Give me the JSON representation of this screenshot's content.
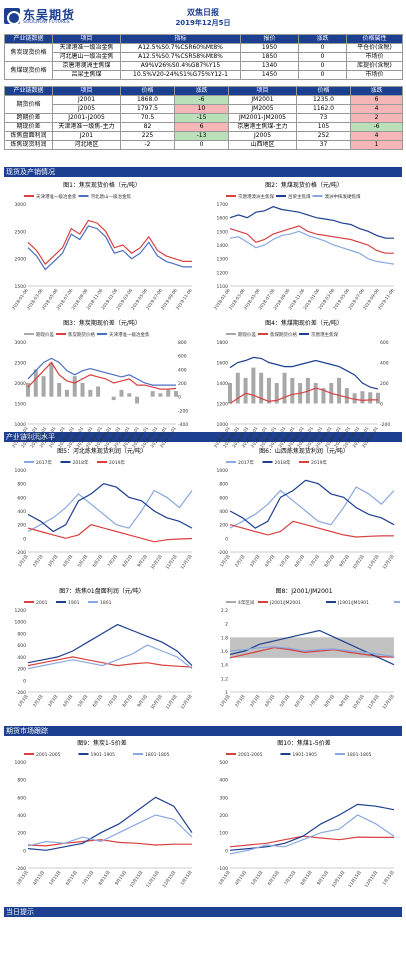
{
  "header": {
    "logo_cn": "东吴期货",
    "logo_en": "SOOCHOW FUTURES",
    "title": "双焦日报",
    "date": "2019年12月5日"
  },
  "spot": {
    "headers": [
      "产业链数据",
      "项目",
      "指标",
      "报价",
      "涨跌",
      "价格属性"
    ],
    "rows": [
      {
        "group": "焦炭现货价格",
        "item": "天津港准一级冶金焦",
        "spec": "A12.5%S0.7%CSR60%Mt8%",
        "price": "1950",
        "chg": "0",
        "attr": "平仓价(含税)"
      },
      {
        "group": "",
        "item": "河北唐山一级冶金焦",
        "spec": "A12.5%S0.7%CSR58%Mt8%",
        "price": "1850",
        "chg": "0",
        "attr": "市场价"
      },
      {
        "group": "焦煤现货价格",
        "item": "京唐港澳洲主焦煤",
        "spec": "A9%V26%S0.4%G87%Y15",
        "price": "1340",
        "chg": "0",
        "attr": "库提价(含税)"
      },
      {
        "group": "",
        "item": "吕梁主焦煤",
        "spec": "10.5%V20-24%S1%G75%Y12-1",
        "price": "1450",
        "chg": "0",
        "attr": "市场价"
      }
    ]
  },
  "futures": {
    "headers": [
      "产业链数据",
      "项目",
      "价格",
      "涨跌",
      "项目",
      "价格",
      "涨跌"
    ],
    "rows": [
      {
        "group": "期货价格",
        "a": "J2001",
        "ap": "1868.0",
        "ac": "-6",
        "b": "JM2001",
        "bp": "1235.0",
        "bc": "6"
      },
      {
        "group": "",
        "a": "J2005",
        "ap": "1797.5",
        "ac": "10",
        "b": "JM2005",
        "bp": "1162.0",
        "bc": "4"
      },
      {
        "group": "跨期价差",
        "a": "J2001-J2005",
        "ap": "70.5",
        "ac": "-15",
        "b": "JM2001-JM2005",
        "bp": "73",
        "bc": "2"
      },
      {
        "group": "期现价差",
        "a": "天津港准一级焦-主力",
        "ap": "82",
        "ac": "6",
        "b": "京唐港主焦煤-主力",
        "bp": "105",
        "bc": "-6"
      },
      {
        "group": "炼焦盘面利润",
        "a": "J201",
        "ap": "225",
        "ac": "-13",
        "b": "J2005",
        "bp": "252",
        "bc": "4"
      },
      {
        "group": "炼焦现货利润",
        "a": "河北地区",
        "ap": "-2",
        "ac": "0",
        "b": "山西地区",
        "bp": "37",
        "bc": "1"
      }
    ]
  },
  "sections": {
    "s1": "现货及产销情况",
    "s2": "产业链利润水平",
    "s3": "期货市场跟踪",
    "s4": "当日提示"
  },
  "captions": {
    "f1": "图1：焦炭现货价格（元/吨）",
    "f2": "图2：焦煤现货价格（元/吨）",
    "f3": "图3：焦炭期现价差（元/吨）",
    "f4": "图4：焦煤期现价差（元/吨）",
    "f5": "图5：河北炼焦现货利润（元/吨）",
    "f6": "图6：山西炼焦现货利润（元/吨）",
    "f7": "图7：炼焦01盘面利润（元/吨）",
    "f8": "图8：J2001/JM2001",
    "f9": "图9：焦炭1-5价差",
    "f10": "图10：焦煤1-5价差"
  },
  "chart_data": [
    {
      "id": "f1",
      "type": "line",
      "ylim": [
        1500,
        3000
      ],
      "yticks": [
        "3000",
        "2500",
        "2000",
        "1500"
      ],
      "xticks": [
        "2018-01-06",
        "2018-03-06",
        "2018-05-06",
        "2018-07-06",
        "2018-09-06",
        "2018-11-06",
        "2019-01-06",
        "2019-03-06",
        "2019-05-06",
        "2019-07-06",
        "2019-09-06",
        "2019-11-06"
      ],
      "series": [
        {
          "name": "天津港准一级冶金焦",
          "color": "#d94040",
          "values": [
            2300,
            2150,
            1900,
            2050,
            2200,
            2550,
            2450,
            2700,
            2650,
            2500,
            2200,
            2250,
            2100,
            2200,
            2400,
            2150,
            2050,
            2000,
            1950,
            1950
          ]
        },
        {
          "name": "河北唐山一级冶金焦",
          "color": "#4a6fc0",
          "values": [
            2200,
            2050,
            1800,
            1950,
            2100,
            2450,
            2350,
            2600,
            2550,
            2400,
            2100,
            2150,
            2000,
            2100,
            2300,
            2050,
            1950,
            1900,
            1850,
            1850
          ]
        }
      ]
    },
    {
      "id": "f2",
      "type": "line",
      "ylim": [
        1100,
        1700
      ],
      "yticks": [
        "1700",
        "1600",
        "1500",
        "1400",
        "1300",
        "1200",
        "1100"
      ],
      "xticks": [
        "2018-01-06",
        "2018-03-06",
        "2018-05-06",
        "2018-07-06",
        "2018-09-06",
        "2018-11-06",
        "2019-01-06",
        "2019-03-06",
        "2019-05-06",
        "2019-07-06",
        "2019-09-06",
        "2019-11-06"
      ],
      "series": [
        {
          "name": "京唐港澳洲主焦煤",
          "color": "#d94040",
          "values": [
            1520,
            1500,
            1480,
            1420,
            1440,
            1480,
            1500,
            1520,
            1540,
            1500,
            1480,
            1470,
            1460,
            1450,
            1440,
            1420,
            1400,
            1360,
            1340,
            1340
          ]
        },
        {
          "name": "吕梁主焦煤",
          "color": "#1c3f8f",
          "values": [
            1600,
            1620,
            1600,
            1640,
            1650,
            1680,
            1660,
            1650,
            1640,
            1620,
            1600,
            1590,
            1580,
            1560,
            1550,
            1520,
            1500,
            1470,
            1450,
            1450
          ]
        },
        {
          "name": "澳洲中挥发硬焦煤",
          "color": "#8aa8e0",
          "values": [
            1450,
            1460,
            1420,
            1380,
            1400,
            1440,
            1470,
            1480,
            1500,
            1470,
            1450,
            1430,
            1400,
            1380,
            1360,
            1340,
            1300,
            1280,
            1270,
            1260
          ]
        }
      ]
    },
    {
      "id": "f3",
      "type": "line",
      "ylim": [
        1000,
        3000
      ],
      "y2lim": [
        -400,
        800
      ],
      "yticks": [
        "3000",
        "2500",
        "2000",
        "1500",
        "1000"
      ],
      "y2ticks": [
        "800",
        "600",
        "400",
        "200",
        "0",
        "-200",
        "-400"
      ],
      "xticks": [
        "2018-07-01",
        "2018-08-01",
        "2018-09-01",
        "2018-10-01",
        "2018-11-01",
        "2018-12-01",
        "2019-01-01",
        "2019-02-01",
        "2019-03-01",
        "2019-04-01",
        "2019-05-01",
        "2019-06-01",
        "2019-07-01",
        "2019-08-01",
        "2019-09-01",
        "2019-10-01",
        "2019-11-01"
      ],
      "series": [
        {
          "name": "期现价差",
          "color": "#a8a8a8",
          "values": [
            200,
            400,
            300,
            500,
            200,
            100,
            300,
            200,
            100,
            150,
            0,
            -50,
            100,
            50,
            -100,
            0,
            80,
            50,
            100,
            82
          ]
        },
        {
          "name": "焦炭期货价格",
          "color": "#d94040",
          "values": [
            1900,
            2100,
            2300,
            2500,
            2200,
            2050,
            2000,
            2100,
            2200,
            2150,
            2100,
            2000,
            2050,
            2100,
            1950,
            1950,
            1900,
            1850,
            1850,
            1868
          ]
        },
        {
          "name": "天津港准一级冶金焦",
          "color": "#4a6fc0",
          "values": [
            2100,
            2300,
            2500,
            2600,
            2500,
            2300,
            2200,
            2300,
            2350,
            2300,
            2250,
            2200,
            2150,
            2200,
            2100,
            2000,
            1950,
            1950,
            1950,
            1950
          ]
        }
      ]
    },
    {
      "id": "f4",
      "type": "line",
      "ylim": [
        1000,
        1800
      ],
      "y2lim": [
        -200,
        600
      ],
      "yticks": [
        "1800",
        "1600",
        "1400",
        "1200",
        "1000"
      ],
      "y2ticks": [
        "600",
        "400",
        "200",
        "0",
        "-200"
      ],
      "xticks": [
        "2018-07-01",
        "2018-08-01",
        "2018-09-01",
        "2018-10-01",
        "2018-11-01",
        "2018-12-01",
        "2019-01-01",
        "2019-02-01",
        "2019-03-01",
        "2019-04-01",
        "2019-05-01",
        "2019-06-01",
        "2019-07-01",
        "2019-08-01",
        "2019-09-01",
        "2019-10-01",
        "2019-11-01"
      ],
      "series": [
        {
          "name": "期现价差",
          "color": "#a8a8a8",
          "values": [
            200,
            300,
            250,
            350,
            300,
            250,
            200,
            300,
            250,
            200,
            250,
            200,
            150,
            200,
            250,
            150,
            100,
            120,
            110,
            105
          ]
        },
        {
          "name": "焦煤期货价格",
          "color": "#d94040",
          "values": [
            1200,
            1250,
            1300,
            1280,
            1250,
            1220,
            1230,
            1260,
            1290,
            1300,
            1320,
            1350,
            1330,
            1300,
            1280,
            1260,
            1240,
            1230,
            1235,
            1235
          ]
        },
        {
          "name": "京唐港主焦煤",
          "color": "#1c3f8f",
          "values": [
            1550,
            1600,
            1620,
            1650,
            1640,
            1600,
            1580,
            1560,
            1560,
            1580,
            1600,
            1620,
            1600,
            1580,
            1560,
            1520,
            1480,
            1400,
            1360,
            1340
          ]
        }
      ]
    },
    {
      "id": "f5",
      "type": "line",
      "ylim": [
        -200,
        1000
      ],
      "yticks": [
        "1000",
        "800",
        "600",
        "400",
        "200",
        "0",
        "-200"
      ],
      "xticks": [
        "1月2日",
        "2月2日",
        "3月2日",
        "4月2日",
        "5月2日",
        "6月2日",
        "7月2日",
        "8月2日",
        "9月2日",
        "10月2日",
        "11月2日",
        "12月2日"
      ],
      "series": [
        {
          "name": "2017年",
          "color": "#8aa8e0",
          "values": [
            100,
            200,
            300,
            450,
            650,
            500,
            350,
            200,
            150,
            400,
            700,
            600,
            450,
            700
          ]
        },
        {
          "name": "2018年",
          "color": "#1c3f8f",
          "values": [
            350,
            250,
            100,
            200,
            550,
            650,
            800,
            750,
            600,
            550,
            400,
            300,
            250,
            150
          ]
        },
        {
          "name": "2019年",
          "color": "#d94040",
          "values": [
            150,
            100,
            50,
            0,
            50,
            200,
            150,
            100,
            50,
            0,
            -50,
            -20,
            -10,
            -2
          ]
        }
      ]
    },
    {
      "id": "f6",
      "type": "line",
      "ylim": [
        -200,
        1000
      ],
      "yticks": [
        "1000",
        "800",
        "600",
        "400",
        "200",
        "0",
        "-200"
      ],
      "xticks": [
        "1月2日",
        "2月2日",
        "3月2日",
        "4月2日",
        "5月2日",
        "6月2日",
        "7月2日",
        "8月2日",
        "9月2日",
        "10月2日",
        "11月2日",
        "12月2日"
      ],
      "series": [
        {
          "name": "2017年",
          "color": "#8aa8e0",
          "values": [
            150,
            250,
            350,
            500,
            700,
            550,
            400,
            250,
            200,
            450,
            750,
            650,
            500,
            700
          ]
        },
        {
          "name": "2018年",
          "color": "#1c3f8f",
          "values": [
            400,
            300,
            150,
            250,
            600,
            700,
            850,
            800,
            650,
            600,
            450,
            350,
            300,
            200
          ]
        },
        {
          "name": "2019年",
          "color": "#d94040",
          "values": [
            200,
            150,
            100,
            50,
            100,
            250,
            200,
            150,
            100,
            50,
            20,
            30,
            35,
            37
          ]
        }
      ]
    },
    {
      "id": "f7",
      "type": "line",
      "ylim": [
        -200,
        1200
      ],
      "yticks": [
        "1200",
        "1000",
        "800",
        "600",
        "400",
        "200",
        "0",
        "-200"
      ],
      "xticks": [
        "1月3日",
        "2月3日",
        "3月3日",
        "4月3日",
        "5月3日",
        "6月3日",
        "7月3日",
        "8月3日",
        "9月3日",
        "10月3日",
        "11月3日",
        "12月3日"
      ],
      "series": [
        {
          "name": "2001",
          "color": "#d94040",
          "values": [
            250,
            300,
            350,
            400,
            350,
            300,
            250,
            280,
            300,
            260,
            240,
            225
          ]
        },
        {
          "name": "1901",
          "color": "#1c3f8f",
          "values": [
            300,
            350,
            400,
            500,
            650,
            800,
            950,
            850,
            750,
            650,
            500,
            250
          ]
        },
        {
          "name": "1801",
          "color": "#8aa8e0",
          "values": [
            200,
            250,
            300,
            350,
            300,
            250,
            350,
            450,
            600,
            500,
            400,
            200
          ]
        }
      ]
    },
    {
      "id": "f8",
      "type": "line",
      "ylim": [
        1.0,
        2.2
      ],
      "yticks": [
        "2.2",
        "2",
        "1.8",
        "1.6",
        "1.4",
        "1.2",
        "1"
      ],
      "xticks": [
        "1月3日",
        "2月3日",
        "3月3日",
        "4月3日",
        "5月3日",
        "6月3日",
        "7月3日",
        "8月3日",
        "9月3日",
        "10月3日",
        "11月3日",
        "12月3日"
      ],
      "series": [
        {
          "name": "4年区间",
          "color": "#a8a8a8",
          "values": [
            1.5,
            1.8
          ]
        },
        {
          "name": "J2001/JM2001",
          "color": "#d94040",
          "values": [
            1.5,
            1.55,
            1.6,
            1.65,
            1.62,
            1.58,
            1.6,
            1.62,
            1.58,
            1.55,
            1.52,
            1.51
          ]
        },
        {
          "name": "J1901/JM1901",
          "color": "#1c3f8f",
          "values": [
            1.55,
            1.6,
            1.7,
            1.75,
            1.8,
            1.85,
            1.9,
            1.8,
            1.7,
            1.6,
            1.5,
            1.4
          ]
        },
        {
          "name": "平均值",
          "color": "#8aa8e0",
          "values": [
            1.6,
            1.62,
            1.65,
            1.66,
            1.64,
            1.6,
            1.62,
            1.63,
            1.6,
            1.58,
            1.55,
            1.52
          ]
        }
      ]
    },
    {
      "id": "f9",
      "type": "line",
      "ylim": [
        -200,
        1000
      ],
      "yticks": [
        "1000",
        "800",
        "600",
        "400",
        "200",
        "0",
        "-200"
      ],
      "xticks": [
        "3月15日",
        "4月15日",
        "5月15日",
        "6月15日",
        "7月15日",
        "8月15日",
        "9月15日",
        "10月15日",
        "11月15日",
        "12月15日",
        "1月15日"
      ],
      "series": [
        {
          "name": "2001-2005",
          "color": "#d94040",
          "values": [
            60,
            50,
            80,
            100,
            120,
            90,
            80,
            60,
            70,
            70
          ]
        },
        {
          "name": "1901-1905",
          "color": "#1c3f8f",
          "values": [
            20,
            0,
            40,
            80,
            200,
            300,
            450,
            600,
            500,
            200
          ]
        },
        {
          "name": "1801-1805",
          "color": "#8aa8e0",
          "values": [
            50,
            100,
            80,
            150,
            100,
            200,
            300,
            400,
            350,
            150
          ]
        }
      ]
    },
    {
      "id": "f10",
      "type": "line",
      "ylim": [
        -100,
        500
      ],
      "yticks": [
        "500",
        "400",
        "300",
        "200",
        "100",
        "0",
        "-100"
      ],
      "xticks": [
        "3月15日",
        "4月15日",
        "5月15日",
        "6月15日",
        "7月15日",
        "8月15日",
        "9月15日",
        "10月15日",
        "11月15日",
        "12月15日",
        "1月15日"
      ],
      "series": [
        {
          "name": "2001-2005",
          "color": "#d94040",
          "values": [
            20,
            30,
            40,
            60,
            80,
            70,
            60,
            75,
            73,
            73
          ]
        },
        {
          "name": "1901-1905",
          "color": "#1c3f8f",
          "values": [
            0,
            10,
            20,
            40,
            80,
            150,
            200,
            260,
            250,
            230
          ]
        },
        {
          "name": "1801-1805",
          "color": "#8aa8e0",
          "values": [
            -20,
            0,
            30,
            20,
            60,
            100,
            120,
            200,
            150,
            80
          ]
        }
      ]
    }
  ]
}
